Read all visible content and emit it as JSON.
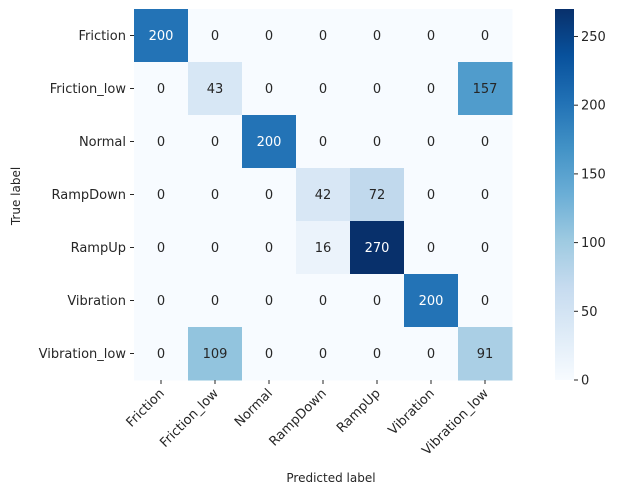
{
  "chart_data": {
    "type": "heatmap",
    "title": "",
    "xlabel": "Predicted label",
    "ylabel": "True label",
    "x_categories": [
      "Friction",
      "Friction_low",
      "Normal",
      "RampDown",
      "RampUp",
      "Vibration",
      "Vibration_low"
    ],
    "y_categories": [
      "Friction",
      "Friction_low",
      "Normal",
      "RampDown",
      "RampUp",
      "Vibration",
      "Vibration_low"
    ],
    "values": [
      [
        200,
        0,
        0,
        0,
        0,
        0,
        0
      ],
      [
        0,
        43,
        0,
        0,
        0,
        0,
        157
      ],
      [
        0,
        0,
        200,
        0,
        0,
        0,
        0
      ],
      [
        0,
        0,
        0,
        42,
        72,
        0,
        0
      ],
      [
        0,
        0,
        0,
        16,
        270,
        0,
        0
      ],
      [
        0,
        0,
        0,
        0,
        0,
        200,
        0
      ],
      [
        0,
        109,
        0,
        0,
        0,
        0,
        91
      ]
    ],
    "colorbar": {
      "range": [
        0,
        270
      ],
      "ticks": [
        0,
        50,
        100,
        150,
        200,
        250
      ],
      "colormap": "Blues"
    },
    "grid": false
  }
}
